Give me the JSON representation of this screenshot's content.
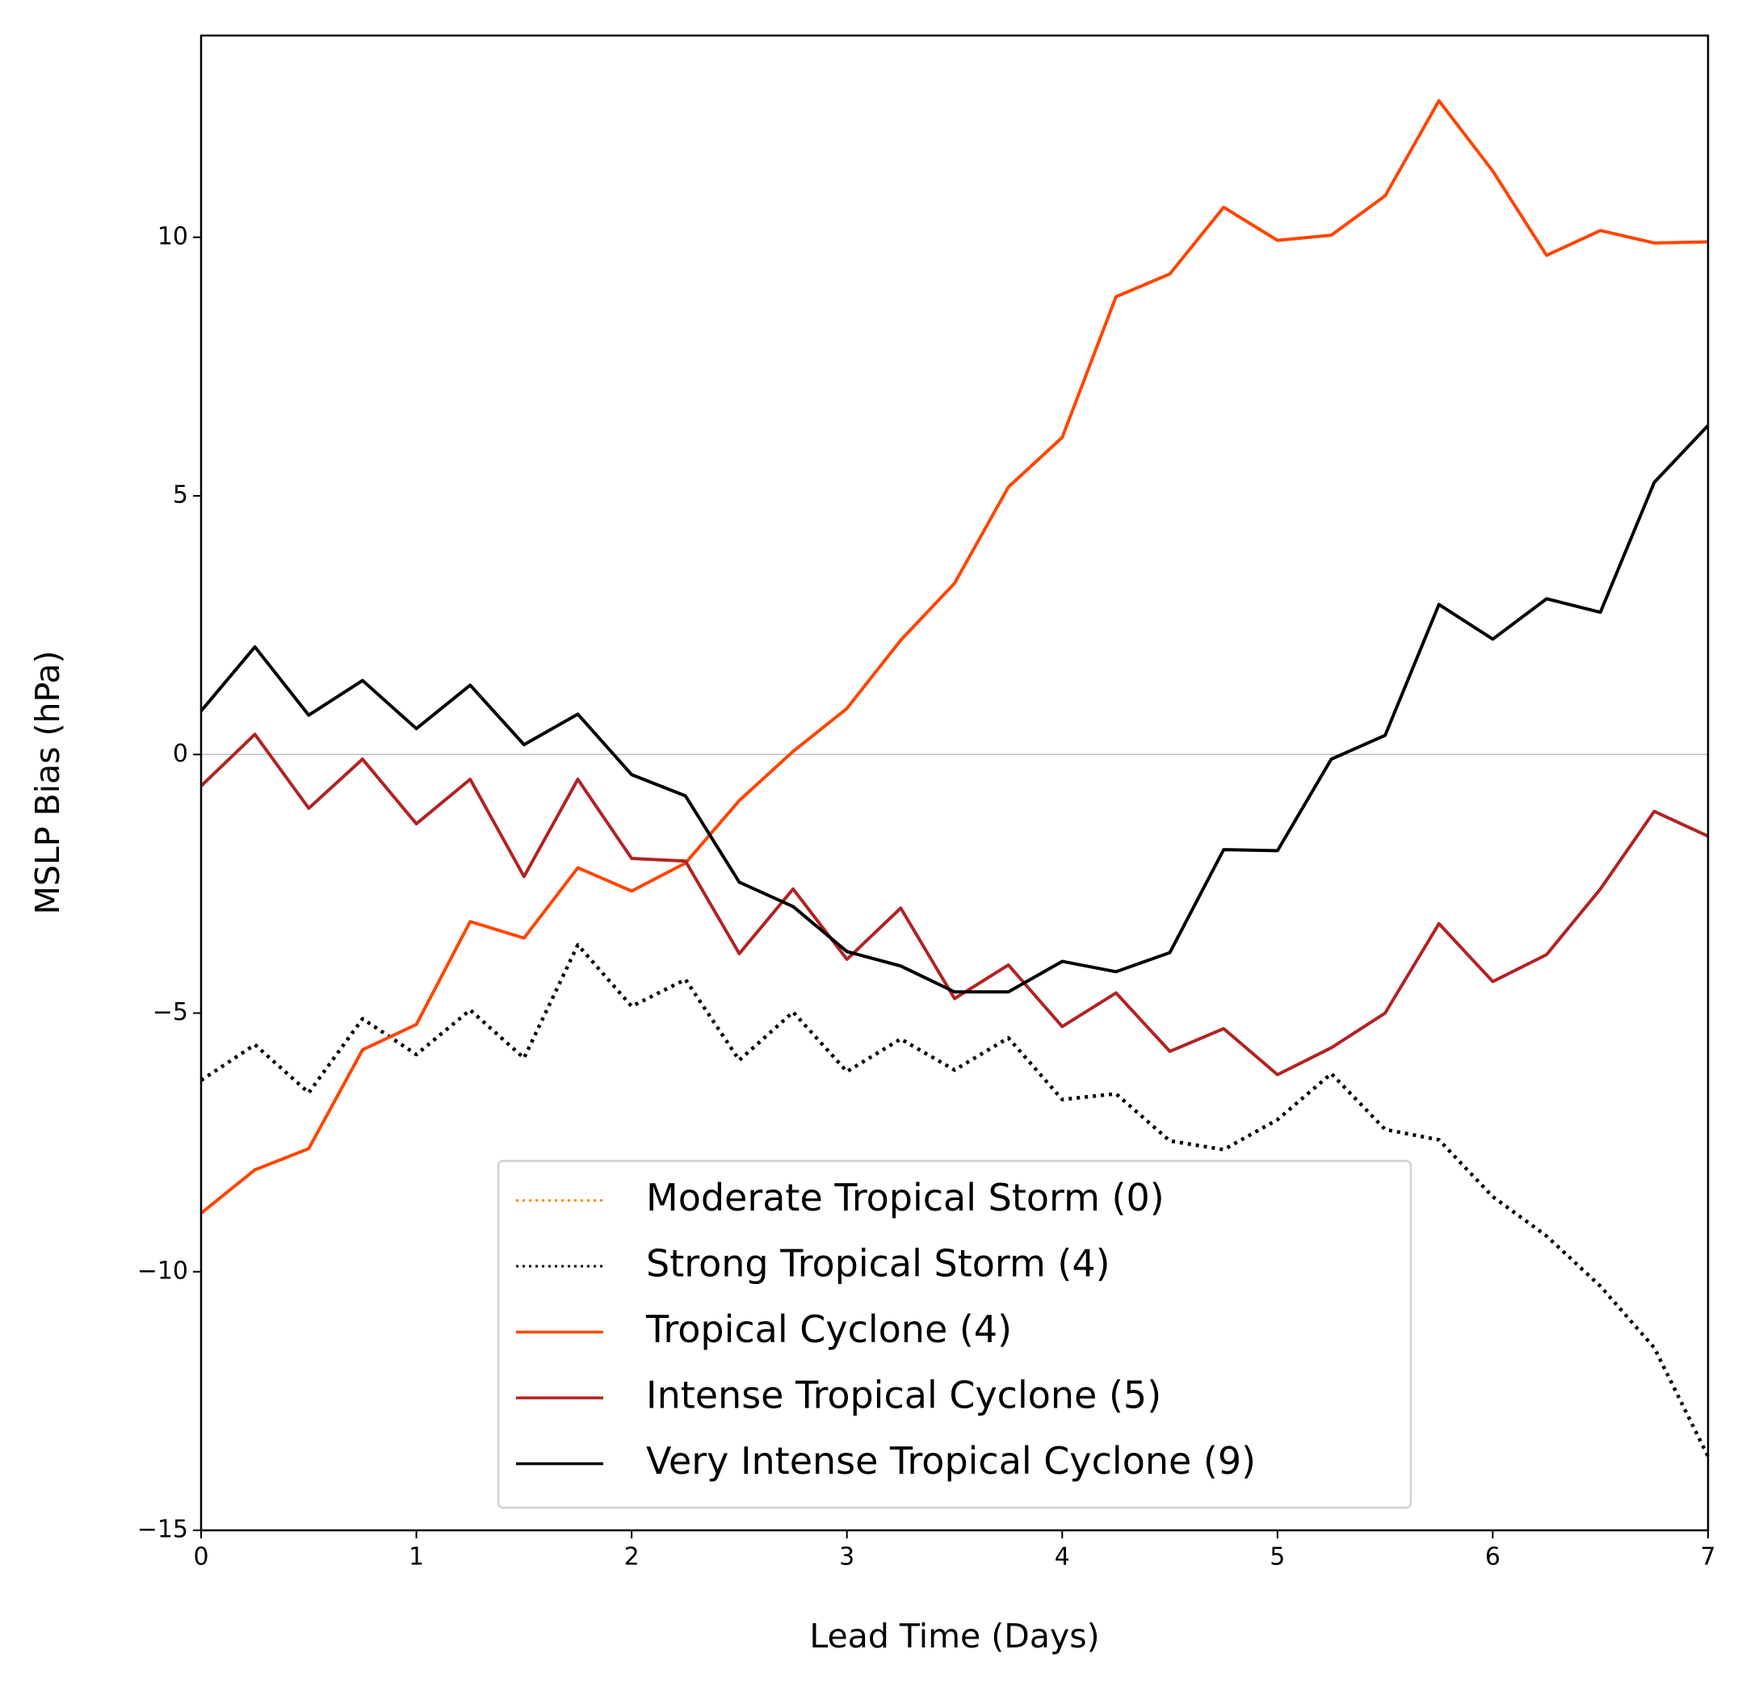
{
  "chart_data": {
    "type": "line",
    "xlabel": "Lead Time (Days)",
    "ylabel": "MSLP Bias (hPa)",
    "x": [
      0,
      0.25,
      0.5,
      0.75,
      1,
      1.25,
      1.5,
      1.75,
      2,
      2.25,
      2.5,
      2.75,
      3,
      3.25,
      3.5,
      3.75,
      4,
      4.25,
      4.5,
      4.75,
      5,
      5.25,
      5.5,
      5.75,
      6,
      6.25,
      6.5,
      6.75,
      7
    ],
    "series": [
      {
        "name": "Moderate Tropical Storm (0)",
        "color": "#ff8c00",
        "dash": "dotted",
        "values": [
          null,
          null,
          null,
          null,
          null,
          null,
          null,
          null,
          null,
          null,
          null,
          null,
          null,
          null,
          null,
          null,
          null,
          null,
          null,
          null,
          null,
          null,
          null,
          null,
          null,
          null,
          null,
          null,
          null
        ]
      },
      {
        "name": "Strong Tropical Storm (4)",
        "color": "#000000",
        "dash": "dotted",
        "values": [
          -6.3,
          -5.61,
          -6.54,
          -5.11,
          -5.8,
          -4.94,
          -5.87,
          -3.68,
          -4.87,
          -4.35,
          -5.91,
          -4.98,
          -6.13,
          -5.5,
          -6.1,
          -5.48,
          -6.67,
          -6.56,
          -7.47,
          -7.64,
          -7.06,
          -6.17,
          -7.25,
          -7.45,
          -8.55,
          -9.31,
          -10.28,
          -11.47,
          -13.57
        ]
      },
      {
        "name": "Tropical Cyclone (4)",
        "color": "#ff4500",
        "dash": "solid",
        "values": [
          -8.87,
          -8.03,
          -7.62,
          -5.71,
          -5.22,
          -3.23,
          -3.55,
          -2.19,
          -2.64,
          -2.1,
          -0.89,
          0.06,
          0.89,
          2.21,
          3.31,
          5.17,
          6.13,
          8.85,
          9.29,
          10.58,
          9.94,
          10.04,
          10.8,
          12.64,
          11.28,
          9.65,
          10.13,
          9.89,
          9.91
        ]
      },
      {
        "name": "Intense Tropical Cyclone (5)",
        "color": "#b22222",
        "dash": "solid",
        "values": [
          -0.61,
          0.39,
          -1.04,
          -0.09,
          -1.34,
          -0.48,
          -2.36,
          -0.48,
          -2.01,
          -2.06,
          -3.85,
          -2.6,
          -3.96,
          -2.97,
          -4.72,
          -4.07,
          -5.26,
          -4.61,
          -5.74,
          -5.3,
          -6.19,
          -5.67,
          -5.0,
          -3.27,
          -4.39,
          -3.87,
          -2.6,
          -1.1,
          -1.58
        ]
      },
      {
        "name": "Very Intense Tropical Cyclone (9)",
        "color": "#000000",
        "dash": "solid",
        "values": [
          0.84,
          2.08,
          0.76,
          1.43,
          0.5,
          1.34,
          0.19,
          0.78,
          -0.39,
          -0.8,
          -2.47,
          -2.94,
          -3.81,
          -4.09,
          -4.59,
          -4.59,
          -4.0,
          -4.2,
          -3.83,
          -1.84,
          -1.86,
          -0.09,
          0.37,
          2.9,
          2.23,
          3.01,
          2.75,
          5.26,
          6.36
        ]
      }
    ],
    "xlim": [
      0,
      7
    ],
    "xticks": [
      0,
      1,
      2,
      3,
      4,
      5,
      6,
      7
    ],
    "ylim": [
      -15,
      13.9
    ],
    "yticks": [
      {
        "value": -15,
        "label": "−15"
      },
      {
        "value": -10,
        "label": "−10"
      },
      {
        "value": -5,
        "label": "−5"
      },
      0,
      5,
      10
    ],
    "axhline": 0,
    "legend": "lower center"
  }
}
